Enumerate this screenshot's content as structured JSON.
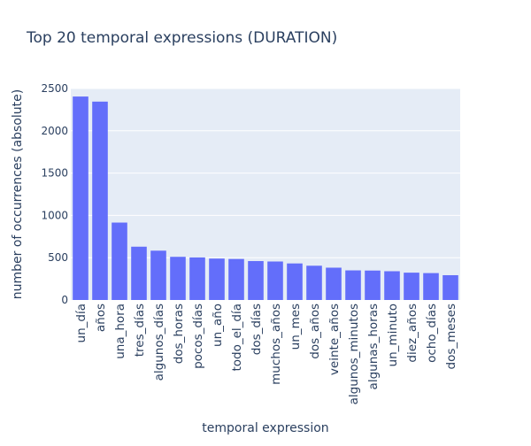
{
  "chart_data": {
    "type": "bar",
    "title": "Top 20 temporal expressions (DURATION)",
    "xlabel": "temporal expression",
    "ylabel": "number of occurrences (absolute)",
    "categories": [
      "un_día",
      "años",
      "una_hora",
      "tres_días",
      "algunos_días",
      "dos_horas",
      "pocos_días",
      "un_año",
      "todo_el_día",
      "dos_días",
      "muchos_años",
      "un_mes",
      "dos_años",
      "veinte_años",
      "algunos_minutos",
      "algunas_horas",
      "un_minuto",
      "diez_años",
      "ocho_días",
      "dos_meses"
    ],
    "values": [
      2405,
      2345,
      915,
      630,
      583,
      510,
      503,
      490,
      485,
      460,
      455,
      432,
      405,
      382,
      350,
      348,
      340,
      323,
      318,
      293
    ],
    "ylim": [
      0,
      2500
    ],
    "yticks": [
      0,
      500,
      1000,
      1500,
      2000,
      2500
    ],
    "grid": true,
    "colors": {
      "bar": "#636efa",
      "plot_bg": "#e5ecf6",
      "grid": "#ffffff",
      "text": "#2a3f5f"
    }
  }
}
